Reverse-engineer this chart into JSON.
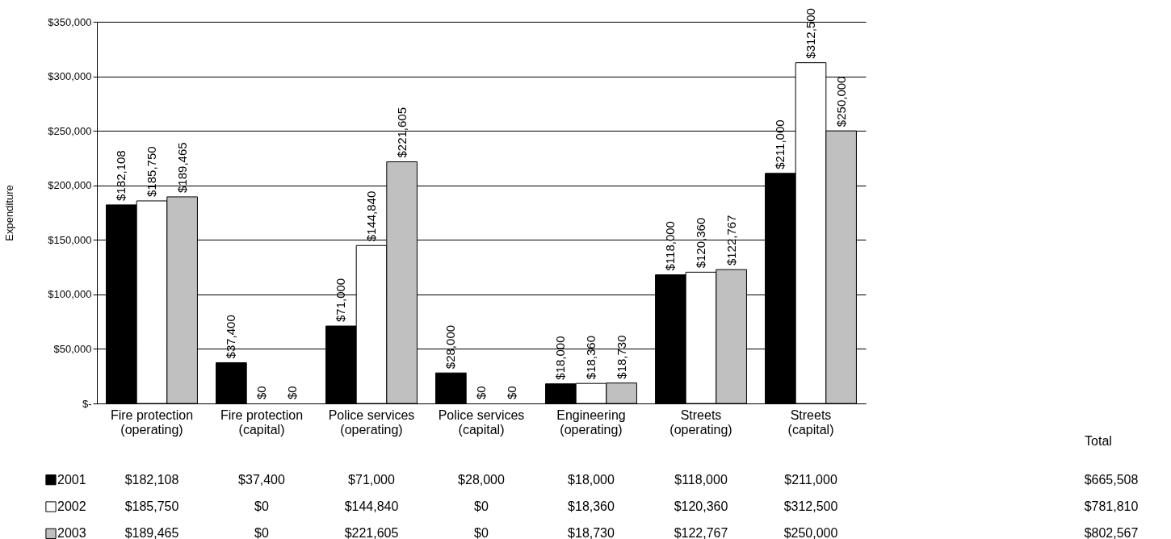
{
  "chart_data": {
    "type": "bar",
    "ylabel": "Expenditure",
    "categories": [
      "Fire protection\n(operating)",
      "Fire protection\n(capital)",
      "Police services\n(operating)",
      "Police services\n(capital)",
      "Engineering\n(operating)",
      "Streets\n(operating)",
      "Streets\n(capital)"
    ],
    "series": [
      {
        "name": "2001",
        "color": "#000000",
        "values": [
          182108,
          37400,
          71000,
          28000,
          18000,
          118000,
          211000
        ],
        "value_labels": [
          "$182,108",
          "$37,400",
          "$71,000",
          "$28,000",
          "$18,000",
          "$118,000",
          "$211,000"
        ]
      },
      {
        "name": "2002",
        "color": "#ffffff",
        "values": [
          185750,
          0,
          144840,
          0,
          18360,
          120360,
          312500
        ],
        "value_labels": [
          "$185,750",
          "$0",
          "$144,840",
          "$0",
          "$18,360",
          "$120,360",
          "$312,500"
        ]
      },
      {
        "name": "2003",
        "color": "#c0c0c0",
        "values": [
          189465,
          0,
          221605,
          0,
          18730,
          122767,
          250000
        ],
        "value_labels": [
          "$189,465",
          "$0",
          "$221,605",
          "$0",
          "$18,730",
          "$122,767",
          "$250,000"
        ]
      }
    ],
    "ylim": [
      0,
      350000
    ],
    "yticks": [
      {
        "value": 0,
        "label": "$-"
      },
      {
        "value": 50000,
        "label": "$50,000"
      },
      {
        "value": 100000,
        "label": "$100,000"
      },
      {
        "value": 150000,
        "label": "$150,000"
      },
      {
        "value": 200000,
        "label": "$200,000"
      },
      {
        "value": 250000,
        "label": "$250,000"
      },
      {
        "value": 300000,
        "label": "$300,000"
      },
      {
        "value": 350000,
        "label": "$350,000"
      }
    ],
    "grid": "y",
    "legend": "bottom left",
    "annotations": [
      "Total",
      "$665,508",
      "$781,810",
      "$802,567"
    ]
  }
}
